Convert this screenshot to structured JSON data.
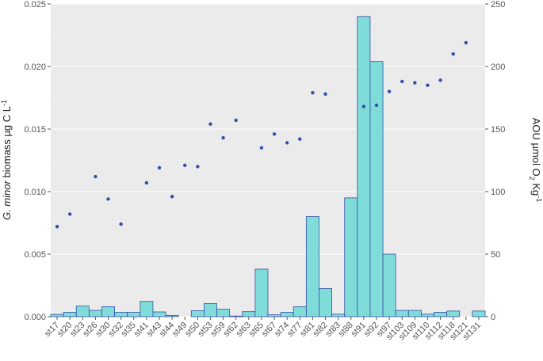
{
  "chart_data": {
    "type": "bar",
    "categories": [
      "st17",
      "st20",
      "st23",
      "st26",
      "st30",
      "st32",
      "st35",
      "st41",
      "st43",
      "st44",
      "st49",
      "st50",
      "st53",
      "st59",
      "st62",
      "st63",
      "st65",
      "st67",
      "st74",
      "st77",
      "st81",
      "st82",
      "st83",
      "st88",
      "st91",
      "st92",
      "st97",
      "st103",
      "st109",
      "st110",
      "st112",
      "st118",
      "st121",
      "st131"
    ],
    "series": [
      {
        "values": [
          0.00018,
          0.00035,
          0.00085,
          0.0005,
          0.0008,
          0.00035,
          0.00035,
          0.00122,
          0.00038,
          0.0001,
          0.0,
          0.00048,
          0.00105,
          0.0006,
          5e-05,
          0.0004,
          0.0038,
          0.00015,
          0.00035,
          0.0008,
          0.008,
          0.00225,
          0.0002,
          0.0095,
          0.024,
          0.0204,
          0.005,
          0.0005,
          0.0005,
          0.0002,
          0.00035,
          0.00045,
          0.0,
          0.00045
        ],
        "color": "#7fdcd8"
      },
      {
        "values": [
          72,
          82,
          null,
          112,
          94,
          74,
          null,
          107,
          119,
          96,
          121,
          120,
          154,
          143,
          157,
          null,
          135,
          146,
          139,
          142,
          179,
          178,
          null,
          null,
          168,
          169,
          180,
          188,
          187,
          185,
          189,
          210,
          219,
          null
        ],
        "color": "#3250a8"
      }
    ],
    "ylim": [
      0,
      0.025
    ],
    "y2lim": [
      0,
      250
    ],
    "yticks": [
      "0.000",
      "0.005",
      "0.010",
      "0.015",
      "0.020",
      "0.025"
    ],
    "y2ticks": [
      "0",
      "50",
      "100",
      "150",
      "200",
      "250"
    ],
    "ylabel_prefix": "G. minor",
    "ylabel_rest": " biomass µg C L",
    "ylabel_sup": "-1",
    "y2label_main": "AOU µmol O",
    "y2label_sub": "2",
    "y2label_mid": " Kg",
    "y2label_sup": "-1",
    "background": "#ebebeb",
    "grid": true
  }
}
